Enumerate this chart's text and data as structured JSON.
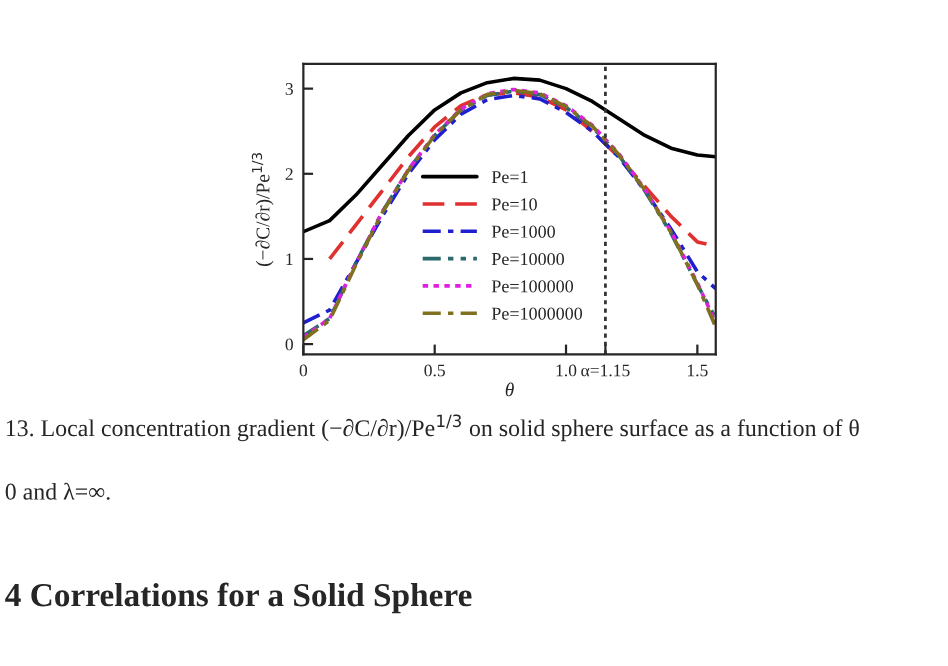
{
  "chart_data": {
    "type": "line",
    "xlabel": "θ",
    "ylabel": "(−∂C/∂r)/Pe$^{1/3}$",
    "x": [
      0,
      0.1,
      0.2,
      0.3,
      0.4,
      0.5,
      0.6,
      0.7,
      0.8,
      0.9,
      1.0,
      1.1,
      1.2,
      1.3,
      1.4,
      1.5,
      1.57
    ],
    "series": [
      {
        "name": "Pe=1",
        "color": "#000000",
        "line_style": "solid",
        "values": [
          1.32,
          1.45,
          1.75,
          2.1,
          2.45,
          2.75,
          2.95,
          3.07,
          3.12,
          3.1,
          3.0,
          2.85,
          2.65,
          2.45,
          2.3,
          2.22,
          2.2
        ]
      },
      {
        "name": "Pe=10",
        "color": "#e03030",
        "line_style": "dashed",
        "values": [
          null,
          1.0,
          1.4,
          1.8,
          2.2,
          2.55,
          2.8,
          2.93,
          2.95,
          2.9,
          2.75,
          2.5,
          2.2,
          1.85,
          1.5,
          1.2,
          1.15
        ]
      },
      {
        "name": "Pe=1000",
        "color": "#1f1fd0",
        "line_style": "dashdot",
        "values": [
          0.25,
          0.4,
          0.95,
          1.5,
          2.0,
          2.4,
          2.7,
          2.87,
          2.92,
          2.88,
          2.72,
          2.5,
          2.2,
          1.8,
          1.35,
          0.85,
          0.65
        ]
      },
      {
        "name": "Pe=10000",
        "color": "#2a6a6a",
        "line_style": "dashdotdot",
        "values": [
          0.1,
          0.3,
          0.95,
          1.55,
          2.05,
          2.45,
          2.75,
          2.92,
          2.97,
          2.93,
          2.78,
          2.55,
          2.22,
          1.8,
          1.3,
          0.7,
          0.3
        ]
      },
      {
        "name": "Pe=100000",
        "color": "#e020e0",
        "line_style": "dotted",
        "values": [
          0.08,
          0.3,
          0.95,
          1.55,
          2.05,
          2.46,
          2.76,
          2.94,
          2.99,
          2.95,
          2.8,
          2.57,
          2.24,
          1.82,
          1.32,
          0.72,
          0.25
        ]
      },
      {
        "name": "Pe=1000000",
        "color": "#807020",
        "line_style": "dashdot",
        "values": [
          0.05,
          0.28,
          0.93,
          1.54,
          2.04,
          2.45,
          2.75,
          2.93,
          2.98,
          2.94,
          2.79,
          2.56,
          2.23,
          1.81,
          1.31,
          0.7,
          0.2
        ]
      }
    ],
    "xlim": [
      0,
      1.57
    ],
    "xticks": [
      0,
      0.5,
      {
        "value": 1.0,
        "label": "1.0"
      },
      {
        "value": 1.15,
        "label": "α=1.15"
      },
      1.5
    ],
    "ylim": [
      -0.12,
      3.29
    ],
    "yticks": [
      0,
      1,
      2,
      3
    ],
    "ref_lines": [
      {
        "axis": "x",
        "value": 1.15,
        "line_style": "dotted",
        "color": "#333333"
      }
    ],
    "legend": "left",
    "grid": false,
    "annotations": [
      "13. Local concentration gradient (−∂C/∂r)/Pe$^{1/3}$ on solid sphere surface as a function of θ",
      "0 and λ=∞.",
      "4 Correlations for a Solid Sphere"
    ]
  }
}
